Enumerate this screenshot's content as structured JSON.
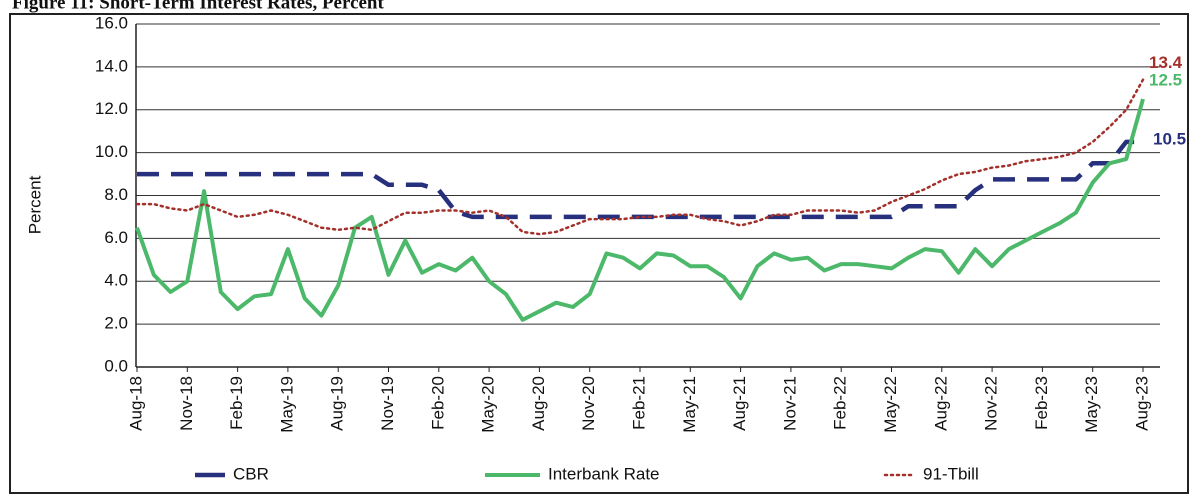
{
  "chart_data": {
    "type": "line",
    "title": "Figure 11: Short-Term Interest Rates, Percent",
    "y_label": "Percent",
    "categories": [
      "Aug-18",
      null,
      null,
      "Nov-18",
      null,
      null,
      "Feb-19",
      null,
      null,
      "May-19",
      null,
      null,
      "Aug-19",
      null,
      null,
      "Nov-19",
      null,
      null,
      "Feb-20",
      null,
      null,
      "May-20",
      null,
      null,
      "Aug-20",
      null,
      null,
      "Nov-20",
      null,
      null,
      "Feb-21",
      null,
      null,
      "May-21",
      null,
      null,
      "Aug-21",
      null,
      null,
      "Nov-21",
      null,
      null,
      "Feb-22",
      null,
      null,
      "May-22",
      null,
      null,
      "Aug-22",
      null,
      null,
      "Nov-22",
      null,
      null,
      "Feb-23",
      null,
      null,
      "May-23",
      null,
      null,
      "Aug-23"
    ],
    "series": [
      {
        "name": "CBR",
        "color": "#26307c",
        "dash": "dashed",
        "values": [
          9.0,
          9.0,
          9.0,
          9.0,
          9.0,
          9.0,
          9.0,
          9.0,
          9.0,
          9.0,
          9.0,
          9.0,
          9.0,
          9.0,
          9.0,
          8.5,
          8.5,
          8.5,
          8.25,
          7.25,
          7.0,
          7.0,
          7.0,
          7.0,
          7.0,
          7.0,
          7.0,
          7.0,
          7.0,
          7.0,
          7.0,
          7.0,
          7.0,
          7.0,
          7.0,
          7.0,
          7.0,
          7.0,
          7.0,
          7.0,
          7.0,
          7.0,
          7.0,
          7.0,
          7.0,
          7.0,
          7.5,
          7.5,
          7.5,
          7.5,
          8.25,
          8.75,
          8.75,
          8.75,
          8.75,
          8.75,
          8.75,
          9.5,
          9.5,
          10.5,
          10.5
        ],
        "value_labels": [
          null,
          null,
          null,
          null,
          null,
          null,
          null,
          null,
          null,
          null,
          null,
          null,
          null,
          null,
          null,
          null,
          null,
          null,
          null,
          null,
          null,
          null,
          null,
          null,
          null,
          null,
          null,
          null,
          null,
          null,
          null,
          null,
          null,
          null,
          null,
          null,
          null,
          null,
          null,
          null,
          null,
          null,
          null,
          null,
          null,
          null,
          null,
          null,
          null,
          null,
          null,
          null,
          null,
          null,
          null,
          null,
          null,
          null,
          null,
          null,
          "10.5"
        ]
      },
      {
        "name": "Interbank Rate",
        "color": "#4cb86a",
        "dash": "solid",
        "values": [
          6.5,
          4.3,
          3.5,
          4.0,
          8.2,
          3.5,
          2.7,
          3.3,
          3.4,
          5.5,
          3.2,
          2.4,
          3.8,
          6.5,
          7.0,
          4.3,
          5.9,
          4.4,
          4.8,
          4.5,
          5.1,
          4.0,
          3.4,
          2.2,
          2.6,
          3.0,
          2.8,
          3.4,
          5.3,
          5.1,
          4.6,
          5.3,
          5.2,
          4.7,
          4.7,
          4.2,
          3.2,
          4.7,
          5.3,
          5.0,
          5.1,
          4.5,
          4.8,
          4.8,
          4.7,
          4.6,
          5.1,
          5.5,
          5.4,
          4.4,
          5.5,
          4.7,
          5.5,
          5.9,
          6.3,
          6.7,
          7.2,
          8.6,
          9.5,
          9.7,
          12.5
        ],
        "value_labels": [
          null,
          null,
          null,
          null,
          null,
          null,
          null,
          null,
          null,
          null,
          null,
          null,
          null,
          null,
          null,
          null,
          null,
          null,
          null,
          null,
          null,
          null,
          null,
          null,
          null,
          null,
          null,
          null,
          null,
          null,
          null,
          null,
          null,
          null,
          null,
          null,
          null,
          null,
          null,
          null,
          null,
          null,
          null,
          null,
          null,
          null,
          null,
          null,
          null,
          null,
          null,
          null,
          null,
          null,
          null,
          null,
          null,
          null,
          null,
          null,
          "12.5"
        ]
      },
      {
        "name": "91-Tbill",
        "color": "#a3302a",
        "dash": "dotted",
        "values": [
          7.6,
          7.6,
          7.4,
          7.3,
          7.6,
          7.3,
          7.0,
          7.1,
          7.3,
          7.1,
          6.8,
          6.5,
          6.4,
          6.5,
          6.4,
          6.8,
          7.2,
          7.2,
          7.3,
          7.3,
          7.2,
          7.3,
          7.0,
          6.3,
          6.2,
          6.3,
          6.6,
          6.9,
          6.9,
          6.9,
          7.0,
          7.0,
          7.1,
          7.1,
          6.9,
          6.8,
          6.6,
          6.8,
          7.1,
          7.1,
          7.3,
          7.3,
          7.3,
          7.2,
          7.3,
          7.7,
          8.0,
          8.3,
          8.7,
          9.0,
          9.1,
          9.3,
          9.4,
          9.6,
          9.7,
          9.8,
          10.0,
          10.5,
          11.2,
          12.0,
          13.4
        ],
        "value_labels": [
          null,
          null,
          null,
          null,
          null,
          null,
          null,
          null,
          null,
          null,
          null,
          null,
          null,
          null,
          null,
          null,
          null,
          null,
          null,
          null,
          null,
          null,
          null,
          null,
          null,
          null,
          null,
          null,
          null,
          null,
          null,
          null,
          null,
          null,
          null,
          null,
          null,
          null,
          null,
          null,
          null,
          null,
          null,
          null,
          null,
          null,
          null,
          null,
          null,
          null,
          null,
          null,
          null,
          null,
          null,
          null,
          null,
          null,
          null,
          null,
          "13.4"
        ]
      }
    ],
    "ylim": [
      0,
      16
    ],
    "yticks": [
      {
        "value": 0,
        "label": "0.0"
      },
      {
        "value": 2,
        "label": "2.0"
      },
      {
        "value": 4,
        "label": "4.0"
      },
      {
        "value": 6,
        "label": "6.0"
      },
      {
        "value": 8,
        "label": "8.0"
      },
      {
        "value": 10,
        "label": "10.0"
      },
      {
        "value": 12,
        "label": "12.0"
      },
      {
        "value": 14,
        "label": "14.0"
      },
      {
        "value": 16,
        "label": "16.0"
      }
    ],
    "grid": true,
    "legend": "bottom"
  }
}
